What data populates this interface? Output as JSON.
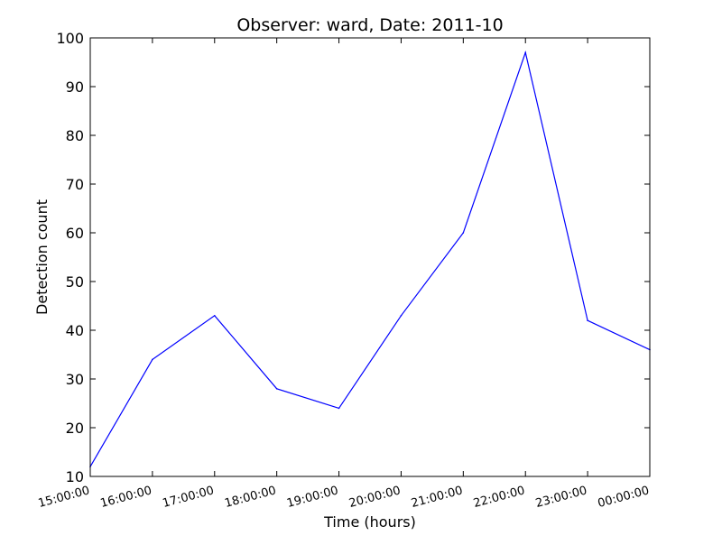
{
  "chart_data": {
    "type": "line",
    "title": "Observer: ward, Date: 2011-10",
    "xlabel": "Time (hours)",
    "ylabel": "Detection count",
    "categories": [
      "15:00:00",
      "16:00:00",
      "17:00:00",
      "18:00:00",
      "19:00:00",
      "20:00:00",
      "21:00:00",
      "22:00:00",
      "23:00:00",
      "00:00:00"
    ],
    "series": [
      {
        "color": "#0000ff",
        "values": [
          12,
          34,
          43,
          28,
          24,
          43,
          60,
          97,
          42,
          36
        ]
      }
    ],
    "ylim": [
      10,
      100
    ],
    "yticks": [
      10,
      20,
      30,
      40,
      50,
      60,
      70,
      80,
      90,
      100
    ],
    "grid": false,
    "legend": "none"
  }
}
